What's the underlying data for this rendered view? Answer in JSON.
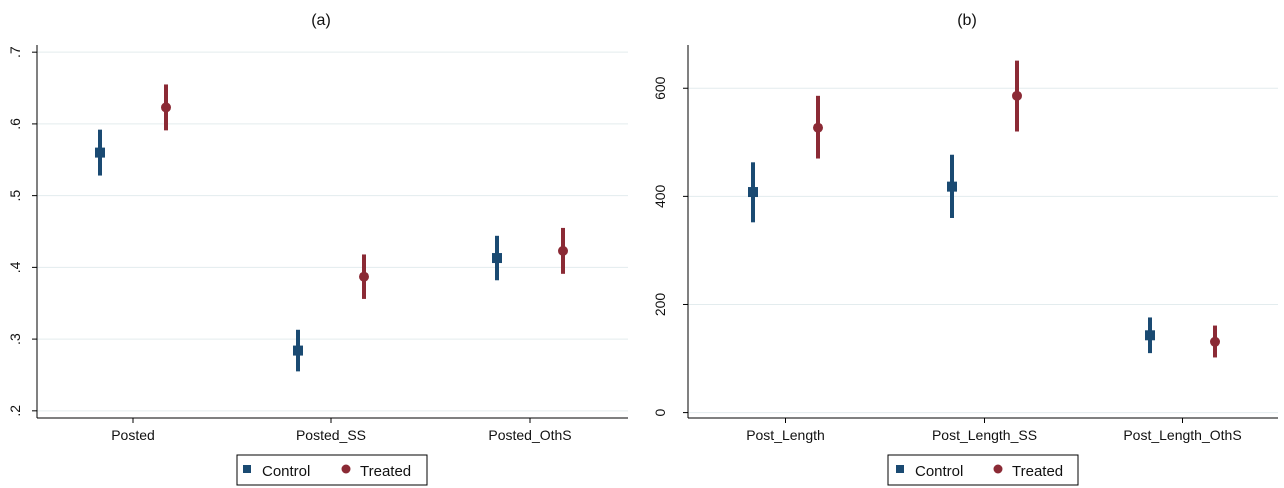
{
  "chart_data": [
    {
      "type": "scatter",
      "title": "(a)",
      "xlabel": "",
      "ylabel": "",
      "categories": [
        "Posted",
        "Posted_SS",
        "Posted_OthS"
      ],
      "ylim": [
        0.19,
        0.71
      ],
      "yticks": [
        0.2,
        0.3,
        0.4,
        0.5,
        0.6,
        0.7
      ],
      "ytick_labels": [
        ".2",
        ".3",
        ".4",
        ".5",
        ".6",
        ".7"
      ],
      "grid": true,
      "legend": "bottom-center",
      "series": [
        {
          "name": "Control",
          "color": "#1a4a72",
          "marker": "square",
          "values": [
            0.56,
            0.284,
            0.413
          ],
          "lower": [
            0.528,
            0.255,
            0.382
          ],
          "upper": [
            0.592,
            0.313,
            0.444
          ]
        },
        {
          "name": "Treated",
          "color": "#8b2a35",
          "marker": "circle",
          "values": [
            0.623,
            0.387,
            0.423
          ],
          "lower": [
            0.591,
            0.356,
            0.391
          ],
          "upper": [
            0.655,
            0.418,
            0.455
          ]
        }
      ]
    },
    {
      "type": "scatter",
      "title": "(b)",
      "xlabel": "",
      "ylabel": "",
      "categories": [
        "Post_Length",
        "Post_Length_SS",
        "Post_Length_OthS"
      ],
      "ylim": [
        -10,
        680
      ],
      "yticks": [
        0,
        200,
        400,
        600
      ],
      "ytick_labels": [
        "0",
        "200",
        "400",
        "600"
      ],
      "grid": true,
      "legend": "bottom-center",
      "series": [
        {
          "name": "Control",
          "color": "#1a4a72",
          "marker": "square",
          "values": [
            408,
            418,
            143
          ],
          "lower": [
            352,
            360,
            110
          ],
          "upper": [
            463,
            477,
            176
          ]
        },
        {
          "name": "Treated",
          "color": "#8b2a35",
          "marker": "circle",
          "values": [
            527,
            586,
            131
          ],
          "lower": [
            470,
            520,
            102
          ],
          "upper": [
            586,
            651,
            161
          ]
        }
      ]
    }
  ]
}
